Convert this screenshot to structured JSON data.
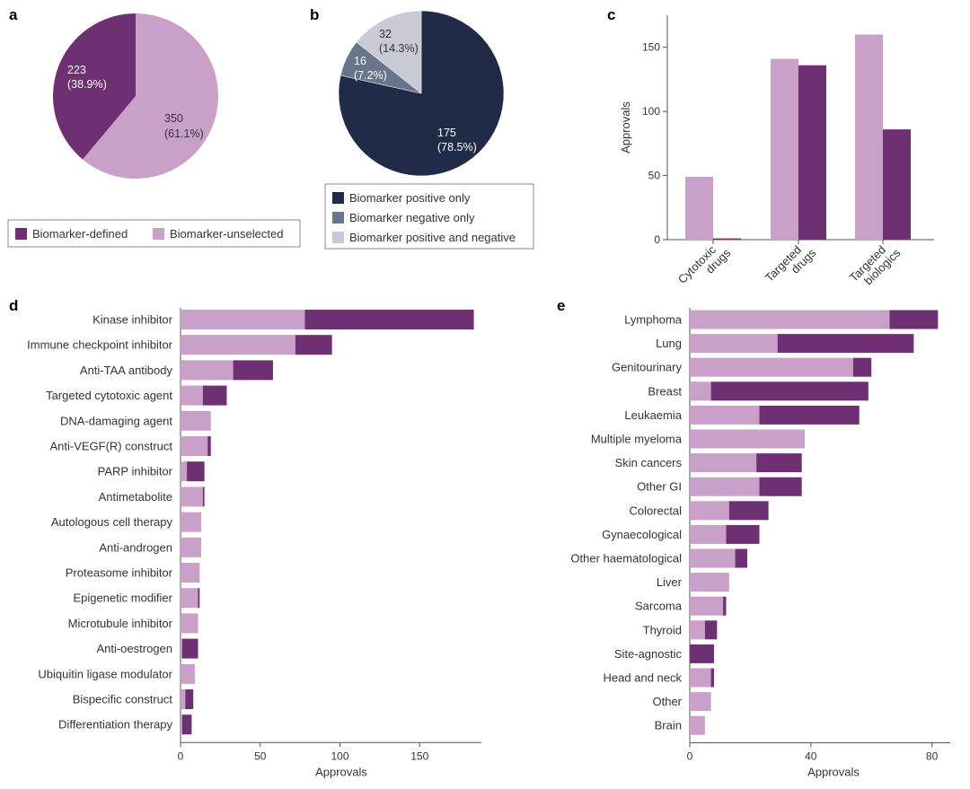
{
  "colors": {
    "defined": "#6e2f73",
    "unselected": "#c9a0c8",
    "positive_only": "#1f2b47",
    "negative_only": "#69758a",
    "pos_and_neg": "#c8cad6",
    "axis": "#555555"
  },
  "panels": {
    "a": "a",
    "b": "b",
    "c": "c",
    "d": "d",
    "e": "e"
  },
  "chart_data": [
    {
      "panel": "a",
      "type": "pie",
      "slices": [
        {
          "name": "Biomarker-defined",
          "value": 223,
          "label": "223",
          "pct": "(38.9%)",
          "color": "#6e2f73"
        },
        {
          "name": "Biomarker-unselected",
          "value": 350,
          "label": "350",
          "pct": "(61.1%)",
          "color": "#c9a0c8"
        }
      ],
      "legend": [
        "Biomarker-defined",
        "Biomarker-unselected"
      ]
    },
    {
      "panel": "b",
      "type": "pie",
      "slices": [
        {
          "name": "Biomarker positive only",
          "value": 175,
          "label": "175",
          "pct": "(78.5%)",
          "color": "#1f2b47"
        },
        {
          "name": "Biomarker negative only",
          "value": 16,
          "label": "16",
          "pct": "(7.2%)",
          "color": "#69758a"
        },
        {
          "name": "Biomarker positive and negative",
          "value": 32,
          "label": "32",
          "pct": "(14.3%)",
          "color": "#c8cad6"
        }
      ],
      "legend": [
        "Biomarker positive only",
        "Biomarker negative only",
        "Biomarker positive and negative"
      ]
    },
    {
      "panel": "c",
      "type": "bar",
      "ylabel": "Approvals",
      "ylim": [
        0,
        175
      ],
      "yticks": [
        0,
        50,
        100,
        150
      ],
      "categories": [
        [
          "Cytotoxic",
          "drugs"
        ],
        [
          "Targeted",
          "drugs"
        ],
        [
          "Targeted",
          "biologics"
        ]
      ],
      "series": [
        {
          "name": "Biomarker-unselected",
          "values": [
            49,
            141,
            160
          ]
        },
        {
          "name": "Biomarker-defined",
          "values": [
            1,
            136,
            86
          ]
        }
      ]
    },
    {
      "panel": "d",
      "type": "bar",
      "orientation": "horizontal",
      "stacked": true,
      "xlabel": "Approvals",
      "xlim": [
        0,
        185
      ],
      "xticks": [
        0,
        50,
        100,
        150
      ],
      "categories": [
        "Kinase inhibitor",
        "Immune checkpoint inhibitor",
        "Anti-TAA antibody",
        "Targeted cytotoxic agent",
        "DNA-damaging agent",
        "Anti-VEGF(R) construct",
        "PARP inhibitor",
        "Antimetabolite",
        "Autologous cell therapy",
        "Anti-androgen",
        "Proteasome inhibitor",
        "Epigenetic modifier",
        "Microtubule inhibitor",
        "Anti-oestrogen",
        "Ubiquitin ligase modulator",
        "Bispecific construct",
        "Differentiation therapy"
      ],
      "series": [
        {
          "name": "Biomarker-unselected",
          "values": [
            78,
            72,
            33,
            14,
            19,
            17,
            4,
            14,
            13,
            13,
            12,
            11,
            11,
            1,
            9,
            3,
            1
          ]
        },
        {
          "name": "Biomarker-defined",
          "values": [
            106,
            23,
            25,
            15,
            0,
            2,
            11,
            1,
            0,
            0,
            0,
            1,
            0,
            10,
            0,
            5,
            6
          ]
        }
      ]
    },
    {
      "panel": "e",
      "type": "bar",
      "orientation": "horizontal",
      "stacked": true,
      "xlabel": "Approvals",
      "xlim": [
        0,
        86
      ],
      "xticks": [
        0,
        40,
        80
      ],
      "categories": [
        "Lymphoma",
        "Lung",
        "Genitourinary",
        "Breast",
        "Leukaemia",
        "Multiple myeloma",
        "Skin cancers",
        "Other GI",
        "Colorectal",
        "Gynaecological",
        "Other haematological",
        "Liver",
        "Sarcoma",
        "Thyroid",
        "Site-agnostic",
        "Head and neck",
        "Other",
        "Brain"
      ],
      "series": [
        {
          "name": "Biomarker-unselected",
          "values": [
            66,
            29,
            54,
            7,
            23,
            38,
            22,
            23,
            13,
            12,
            15,
            13,
            11,
            5,
            0,
            7,
            7,
            5
          ]
        },
        {
          "name": "Biomarker-defined",
          "values": [
            16,
            45,
            6,
            52,
            33,
            0,
            15,
            14,
            13,
            11,
            4,
            0,
            1,
            4,
            8,
            1,
            0,
            0
          ]
        }
      ]
    }
  ]
}
